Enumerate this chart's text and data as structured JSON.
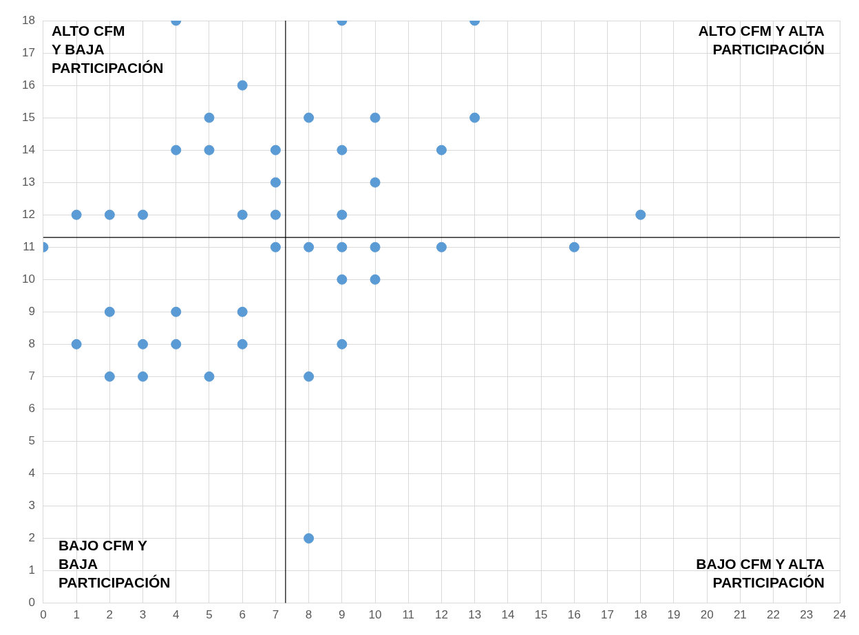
{
  "chart_data": {
    "type": "scatter",
    "x": [
      4,
      9,
      13,
      6,
      5,
      8,
      10,
      13,
      4,
      5,
      7,
      9,
      12,
      7,
      10,
      1,
      2,
      3,
      6,
      7,
      9,
      18,
      0,
      7,
      8,
      9,
      10,
      12,
      16,
      9,
      10,
      2,
      4,
      6,
      1,
      3,
      4,
      6,
      9,
      2,
      3,
      5,
      8,
      8
    ],
    "values": [
      18,
      18,
      18,
      16,
      15,
      15,
      15,
      15,
      14,
      14,
      14,
      14,
      14,
      13,
      13,
      12,
      12,
      12,
      12,
      12,
      12,
      12,
      11,
      11,
      11,
      11,
      11,
      11,
      11,
      10,
      10,
      9,
      9,
      9,
      8,
      8,
      8,
      8,
      8,
      7,
      7,
      7,
      7,
      2
    ],
    "color": "#5b9bd5",
    "marker": "circle",
    "xlim": [
      0,
      24
    ],
    "xticks": [
      0,
      1,
      2,
      3,
      4,
      5,
      6,
      7,
      8,
      9,
      10,
      11,
      12,
      13,
      14,
      15,
      16,
      17,
      18,
      19,
      20,
      21,
      22,
      23,
      24
    ],
    "ylim": [
      0,
      18
    ],
    "yticks": [
      0,
      1,
      2,
      3,
      4,
      5,
      6,
      7,
      8,
      9,
      10,
      11,
      12,
      13,
      14,
      15,
      16,
      17,
      18
    ],
    "grid": true,
    "legend": false,
    "ref_lines": [
      {
        "axis": "x",
        "value": 7.3,
        "color": "#000000"
      },
      {
        "axis": "y",
        "value": 11.3,
        "color": "#000000"
      }
    ],
    "annotations": [
      "ALTO CFM\nY BAJA\nPARTICIPACIÓN",
      "ALTO CFM Y ALTA\nPARTICIPACIÓN",
      "BAJO CFM Y\nBAJA\nPARTICIPACIÓN",
      "BAJO CFM Y ALTA\nPARTICIPACIÓN"
    ]
  }
}
